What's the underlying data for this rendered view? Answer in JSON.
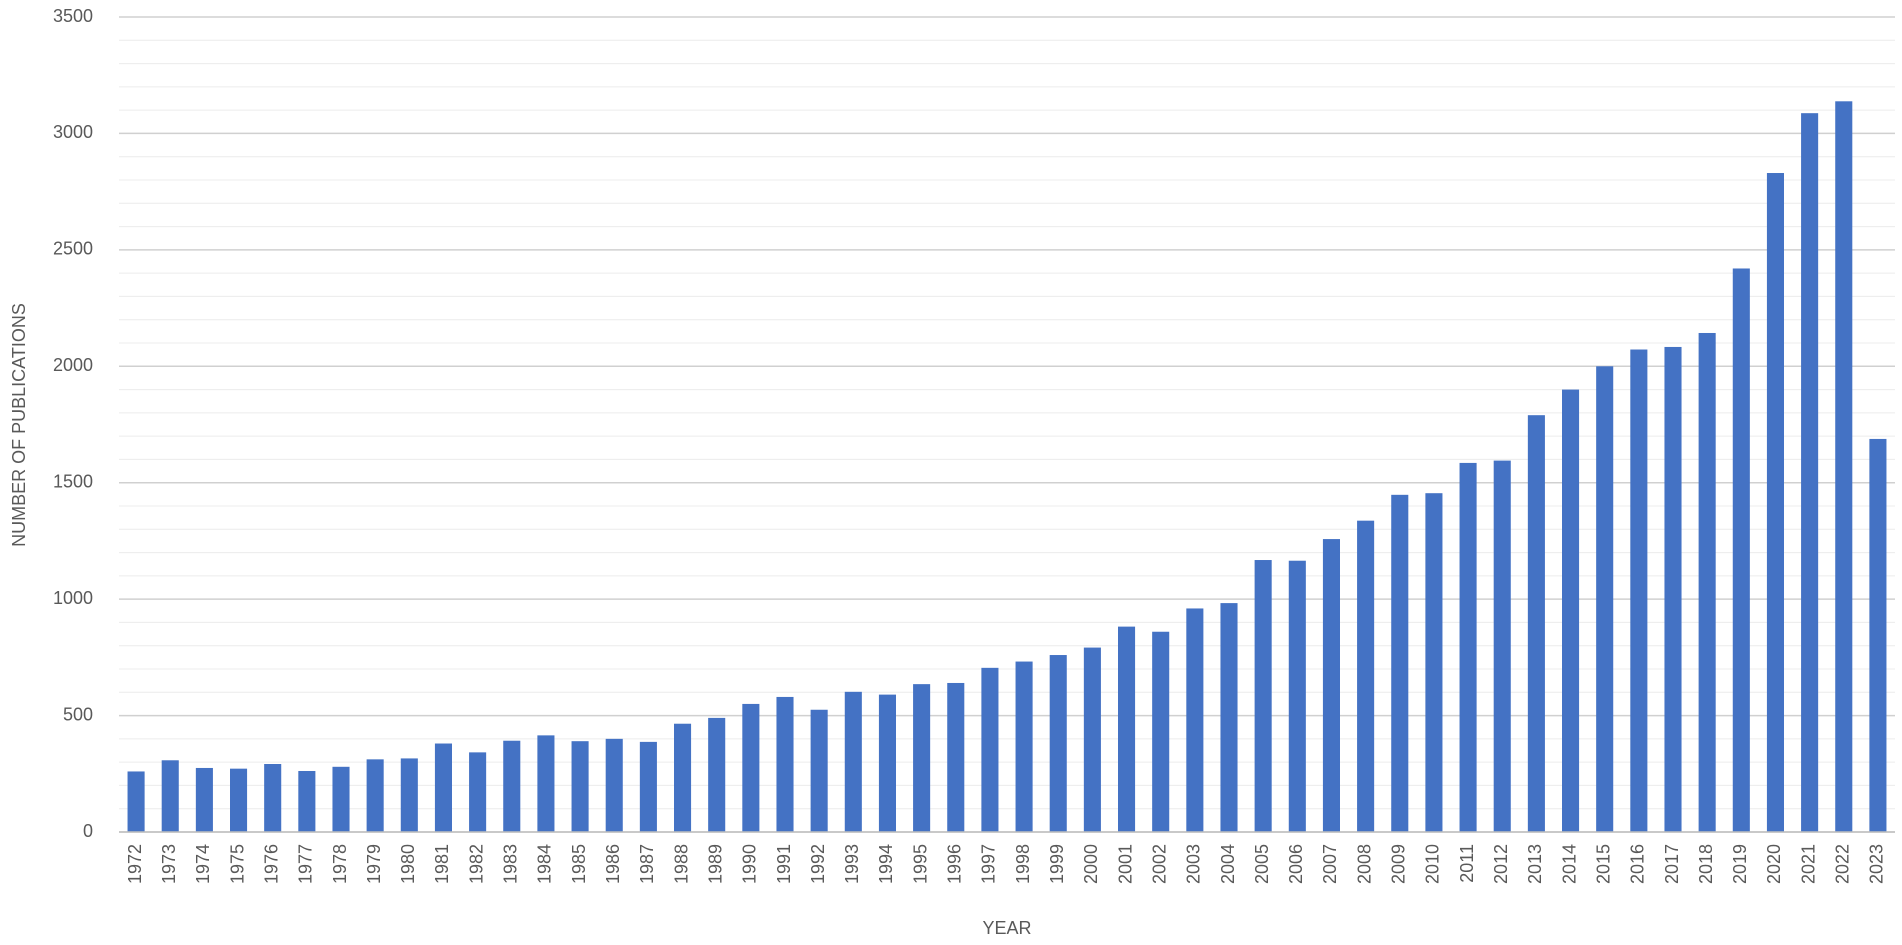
{
  "chart_data": {
    "type": "bar",
    "x_label": "YEAR",
    "y_label": "NUMBER OF PUBLICATIONS",
    "categories": [
      "1972",
      "1973",
      "1974",
      "1975",
      "1976",
      "1977",
      "1978",
      "1979",
      "1980",
      "1981",
      "1982",
      "1983",
      "1984",
      "1985",
      "1986",
      "1987",
      "1988",
      "1989",
      "1990",
      "1991",
      "1992",
      "1993",
      "1994",
      "1995",
      "1996",
      "1997",
      "1998",
      "1999",
      "2000",
      "2001",
      "2002",
      "2003",
      "2004",
      "2005",
      "2006",
      "2007",
      "2008",
      "2009",
      "2010",
      "2011",
      "2012",
      "2013",
      "2014",
      "2015",
      "2016",
      "2017",
      "2018",
      "2019",
      "2020",
      "2021",
      "2022",
      "2023"
    ],
    "values": [
      260,
      308,
      275,
      272,
      292,
      262,
      280,
      312,
      316,
      380,
      342,
      392,
      415,
      390,
      400,
      387,
      465,
      490,
      550,
      580,
      525,
      602,
      590,
      635,
      640,
      705,
      732,
      760,
      792,
      882,
      860,
      960,
      983,
      1168,
      1165,
      1258,
      1337,
      1448,
      1455,
      1585,
      1595,
      1790,
      1900,
      2000,
      2072,
      2083,
      2143,
      2420,
      2830,
      3087,
      3138,
      1688
    ],
    "color": "#4472c4",
    "ylim": [
      0,
      3500
    ],
    "yticks": [
      0,
      500,
      1000,
      1500,
      2000,
      2500,
      3000,
      3500
    ],
    "grid": true,
    "minor_grid": true
  }
}
